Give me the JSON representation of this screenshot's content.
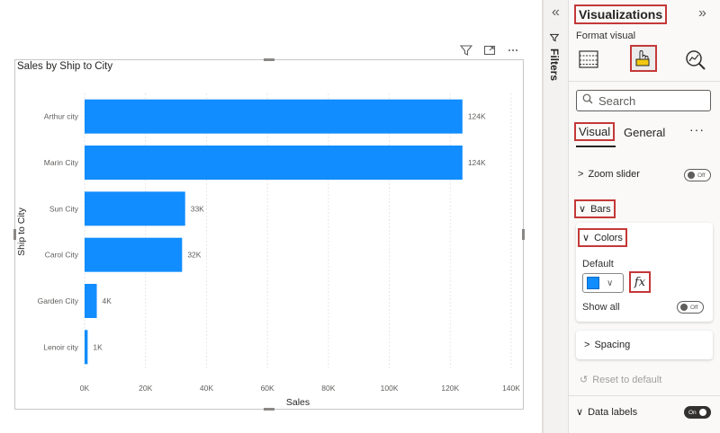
{
  "chart_data": {
    "type": "bar",
    "orientation": "horizontal",
    "title": "Sales by Ship to City",
    "xlabel": "Sales",
    "ylabel": "Ship to City",
    "categories": [
      "Arthur city",
      "Marin City",
      "Sun City",
      "Carol City",
      "Garden City",
      "Lenoir city"
    ],
    "values": [
      124000,
      124000,
      33000,
      32000,
      4000,
      1000
    ],
    "data_labels": [
      "124K",
      "124K",
      "33K",
      "32K",
      "4K",
      "1K"
    ],
    "xlim": [
      0,
      140000
    ],
    "xticks": [
      0,
      20000,
      40000,
      60000,
      80000,
      100000,
      120000,
      140000
    ],
    "xtick_labels": [
      "0K",
      "20K",
      "40K",
      "60K",
      "80K",
      "100K",
      "120K",
      "140K"
    ],
    "grid": true,
    "bar_color": "#118dff"
  },
  "filters": {
    "label": "Filters",
    "collapse_icon": "double-chevron-left-icon"
  },
  "viz_pane": {
    "title": "Visualizations",
    "expand_icon": "double-chevron-right-icon",
    "subtitle": "Format visual",
    "search_placeholder": "Search",
    "tabs": {
      "visual": "Visual",
      "general": "General",
      "more": "···"
    },
    "zoom_slider": {
      "label": "Zoom slider",
      "toggle": "Off"
    },
    "bars": {
      "label": "Bars"
    },
    "colors": {
      "label": "Colors",
      "default_label": "Default",
      "fx": "fx",
      "default_color": "#118dff"
    },
    "show_all": {
      "label": "Show all",
      "toggle": "Off"
    },
    "spacing": {
      "label": "Spacing"
    },
    "reset": {
      "label": "Reset to default"
    },
    "data_labels": {
      "label": "Data labels",
      "toggle": "On"
    }
  }
}
